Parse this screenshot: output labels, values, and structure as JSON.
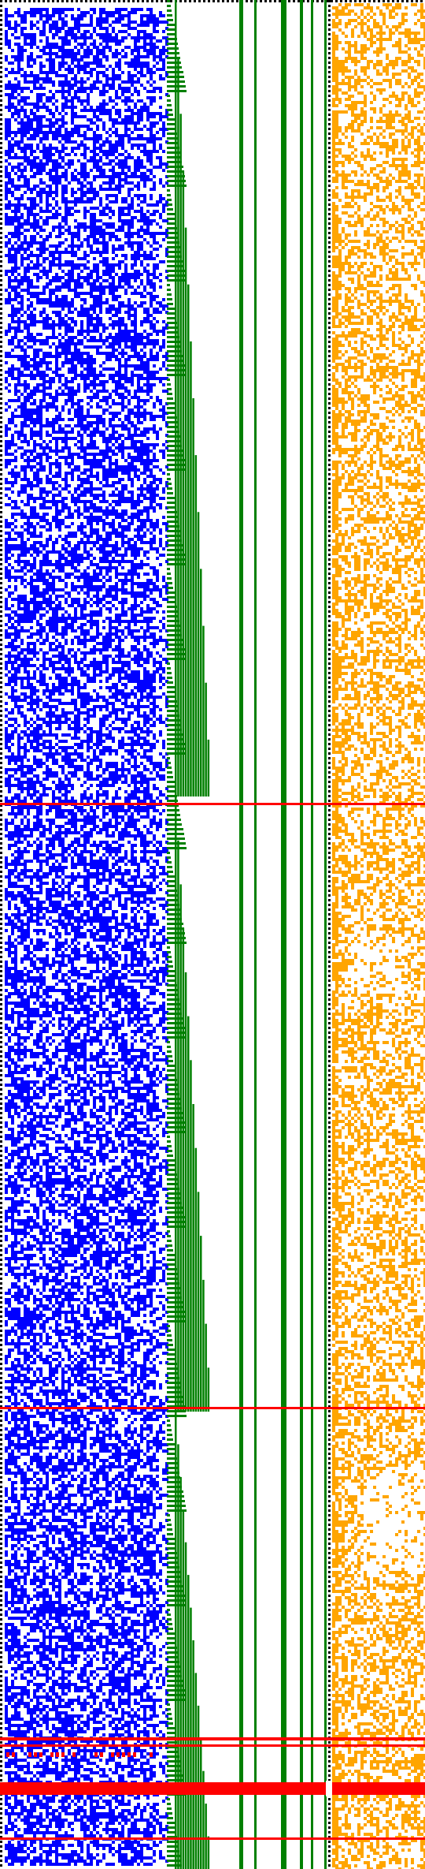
{
  "colors": {
    "background": "#ffffff",
    "dotted_border": "#000000",
    "blue_pattern": "#0000ff",
    "green_lines": "#008000",
    "orange_pattern": "#ffa500",
    "red_markers": "#ff0000"
  },
  "regions": [
    {
      "name": "left-dotted-border",
      "color": "dotted_border"
    },
    {
      "name": "blue-noise-field",
      "color": "blue_pattern"
    },
    {
      "name": "green-staircase-bars",
      "color": "green_lines"
    },
    {
      "name": "green-vertical-lines",
      "color": "green_lines"
    },
    {
      "name": "right-dotted-divider",
      "color": "dotted_border"
    },
    {
      "name": "orange-noise-field",
      "color": "orange_pattern"
    },
    {
      "name": "red-horizontal-markers",
      "color": "red_markers"
    }
  ]
}
